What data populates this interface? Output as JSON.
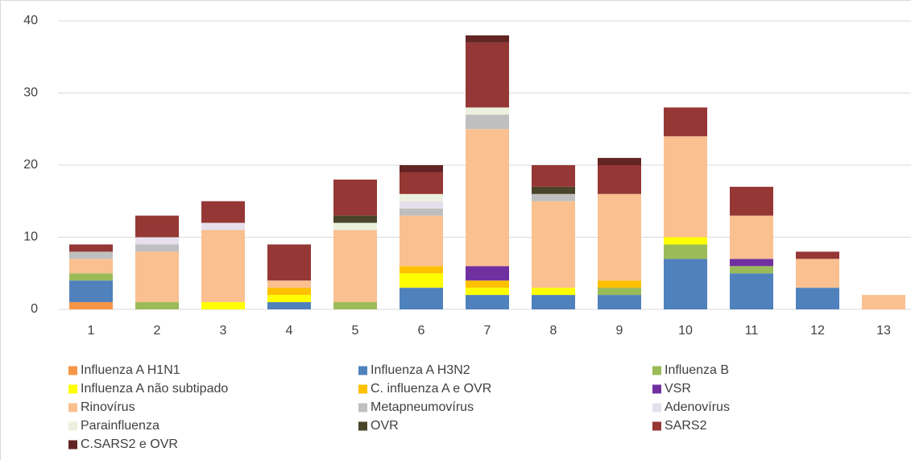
{
  "chart_data": {
    "type": "stacked_bar",
    "categories": [
      "1",
      "2",
      "3",
      "4",
      "5",
      "6",
      "7",
      "8",
      "9",
      "10",
      "11",
      "12",
      "13"
    ],
    "ylim": [
      0,
      40
    ],
    "yticks": [
      0,
      10,
      20,
      30,
      40
    ],
    "grid": true,
    "series": [
      {
        "name": "Influenza A H1N1",
        "color": "#f79646",
        "values": [
          1,
          0,
          0,
          0,
          0,
          0,
          0,
          0,
          0,
          0,
          0,
          0,
          0
        ]
      },
      {
        "name": "Influenza A H3N2",
        "color": "#4f81bd",
        "values": [
          3,
          0,
          0,
          1,
          0,
          3,
          2,
          2,
          2,
          7,
          5,
          3,
          0
        ]
      },
      {
        "name": "Influenza B",
        "color": "#9bbb59",
        "values": [
          1,
          1,
          0,
          0,
          1,
          0,
          0,
          0,
          1,
          2,
          1,
          0,
          0
        ]
      },
      {
        "name": "Influenza A não subtipado",
        "color": "#ffff00",
        "values": [
          0,
          0,
          1,
          1,
          0,
          2,
          1,
          1,
          0,
          1,
          0,
          0,
          0
        ]
      },
      {
        "name": "C. influenza A e OVR",
        "color": "#ffc000",
        "values": [
          0,
          0,
          0,
          1,
          0,
          1,
          1,
          0,
          1,
          0,
          0,
          0,
          0
        ]
      },
      {
        "name": "VSR",
        "color": "#7030a0",
        "values": [
          0,
          0,
          0,
          0,
          0,
          0,
          2,
          0,
          0,
          0,
          1,
          0,
          0
        ]
      },
      {
        "name": "Rinovírus",
        "color": "#fac090",
        "values": [
          2,
          7,
          10,
          1,
          10,
          7,
          19,
          12,
          12,
          14,
          6,
          4,
          2
        ]
      },
      {
        "name": "Metapneumovírus",
        "color": "#bfbfbf",
        "values": [
          1,
          1,
          0,
          0,
          0,
          1,
          2,
          1,
          0,
          0,
          0,
          0,
          0
        ]
      },
      {
        "name": "Adenovírus",
        "color": "#e6e0ec",
        "values": [
          0,
          1,
          1,
          0,
          0,
          1,
          0,
          0,
          0,
          0,
          0,
          0,
          0
        ]
      },
      {
        "name": "Parainfluenza",
        "color": "#ebf1de",
        "values": [
          0,
          0,
          0,
          0,
          1,
          1,
          1,
          0,
          0,
          0,
          0,
          0,
          0
        ]
      },
      {
        "name": "OVR",
        "color": "#4a452a",
        "values": [
          0,
          0,
          0,
          0,
          1,
          0,
          0,
          1,
          0,
          0,
          0,
          0,
          0
        ]
      },
      {
        "name": "SARS2",
        "color": "#953735",
        "values": [
          1,
          3,
          3,
          5,
          5,
          3,
          9,
          3,
          4,
          4,
          4,
          1,
          0
        ]
      },
      {
        "name": "C.SARS2 e OVR",
        "color": "#632523",
        "values": [
          0,
          0,
          0,
          0,
          0,
          1,
          1,
          0,
          1,
          0,
          0,
          0,
          0
        ]
      }
    ]
  }
}
